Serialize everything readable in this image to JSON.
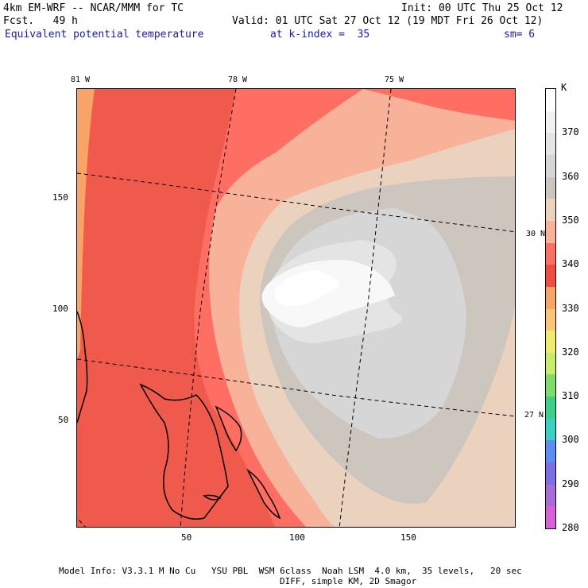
{
  "header": {
    "model_line": "4km EM-WRF -- NCAR/MMM for TC",
    "init_line": "Init: 00 UTC Thu 25 Oct 12",
    "fcst_line": "Fcst.   49 h",
    "valid_line": "Valid: 01 UTC Sat 27 Oct 12 (19 MDT Fri 26 Oct 12)",
    "field_line": "Equivalent potential temperature",
    "level_line": "at k-index =  35",
    "smooth_line": "sm= 6"
  },
  "map": {
    "lon_labels": [
      "81 W",
      "78 W",
      "75 W"
    ],
    "lat_labels": [
      "30 N",
      "27 N"
    ],
    "x_ticks": [
      "50",
      "100",
      "150"
    ],
    "y_ticks": [
      "150",
      "100",
      "50"
    ]
  },
  "colorbar": {
    "unit": "K",
    "labels": [
      "370",
      "360",
      "350",
      "340",
      "330",
      "320",
      "310",
      "300",
      "290",
      "280"
    ],
    "colors": [
      "#ffffff",
      "#f2f2f2",
      "#e4e4e4",
      "#d6d6d6",
      "#cdc6be",
      "#ead2bf",
      "#f9b29a",
      "#ff6e63",
      "#f04d40",
      "#f7a466",
      "#fbc478",
      "#f0ec6b",
      "#c8ec6a",
      "#7edc6d",
      "#3ccf8a",
      "#3ad1c4",
      "#5b8ef2",
      "#7b6ee6",
      "#a86cd8",
      "#d860d8"
    ]
  },
  "footer": {
    "line1": "Model Info: V3.3.1 M No Cu   YSU PBL  WSM 6class  Noah LSM  4.0 km,  35 levels,   20 sec",
    "line2": "DIFF, simple KM, 2D Smagor"
  }
}
